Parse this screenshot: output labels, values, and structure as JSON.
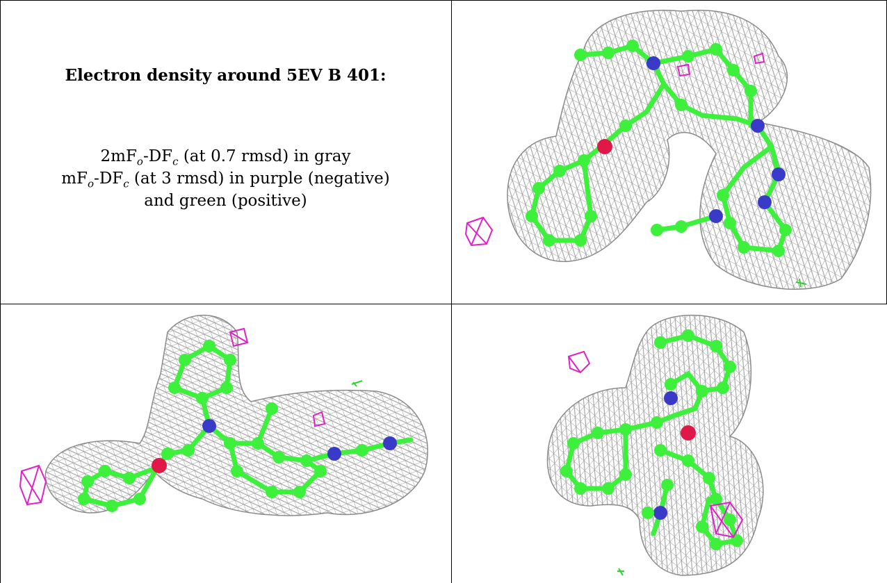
{
  "caption": {
    "title": "Electron density around 5EV B 401:",
    "line1": {
      "pre": "2mF",
      "sub1": "o",
      "mid": "-DF",
      "sub2": "c",
      "post": " (at 0.7 rmsd) in gray"
    },
    "line2": {
      "pre": "mF",
      "sub1": "o",
      "mid": "-DF",
      "sub2": "c",
      "post": " (at 3 rmsd) in purple (negative)"
    },
    "line3": "and green (positive)"
  },
  "colors": {
    "mesh": "#9a9a9a",
    "carbon": "#3cf03c",
    "nitrogen": "#3a3ac8",
    "oxygen": "#e01848",
    "negative": "#e020c8",
    "positive": "#30d030"
  },
  "panels": [
    "view-top-right",
    "view-bottom-left",
    "view-bottom-right"
  ]
}
